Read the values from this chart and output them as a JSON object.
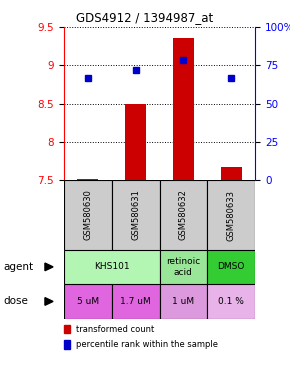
{
  "title": "GDS4912 / 1394987_at",
  "samples": [
    "GSM580630",
    "GSM580631",
    "GSM580632",
    "GSM580633"
  ],
  "bar_values": [
    7.52,
    8.5,
    9.35,
    7.67
  ],
  "bar_bottom": 7.5,
  "dot_values": [
    8.83,
    8.94,
    9.07,
    8.83
  ],
  "ylim": [
    7.5,
    9.5
  ],
  "yticks_left": [
    7.5,
    8.0,
    8.5,
    9.0,
    9.5
  ],
  "ytick_left_labels": [
    "7.5",
    "8",
    "8.5",
    "9",
    "9.5"
  ],
  "yticks_right": [
    0,
    25,
    50,
    75,
    100
  ],
  "ytick_right_labels": [
    "0",
    "25",
    "50",
    "75",
    "100%"
  ],
  "agent_defs": [
    {
      "start": 0,
      "end": 2,
      "label": "KHS101",
      "color": "#b3f5b3"
    },
    {
      "start": 2,
      "end": 3,
      "label": "retinoic\nacid",
      "color": "#99e699"
    },
    {
      "start": 3,
      "end": 4,
      "label": "DMSO",
      "color": "#33cc33"
    }
  ],
  "dose_labels": [
    "5 uM",
    "1.7 uM",
    "1 uM",
    "0.1 %"
  ],
  "dose_colors": [
    "#e066e0",
    "#e066e0",
    "#dd99dd",
    "#e8b3e8"
  ],
  "bar_color": "#cc0000",
  "dot_color": "#0000cc",
  "bg_color": "#ffffff",
  "sample_bg": "#cccccc"
}
